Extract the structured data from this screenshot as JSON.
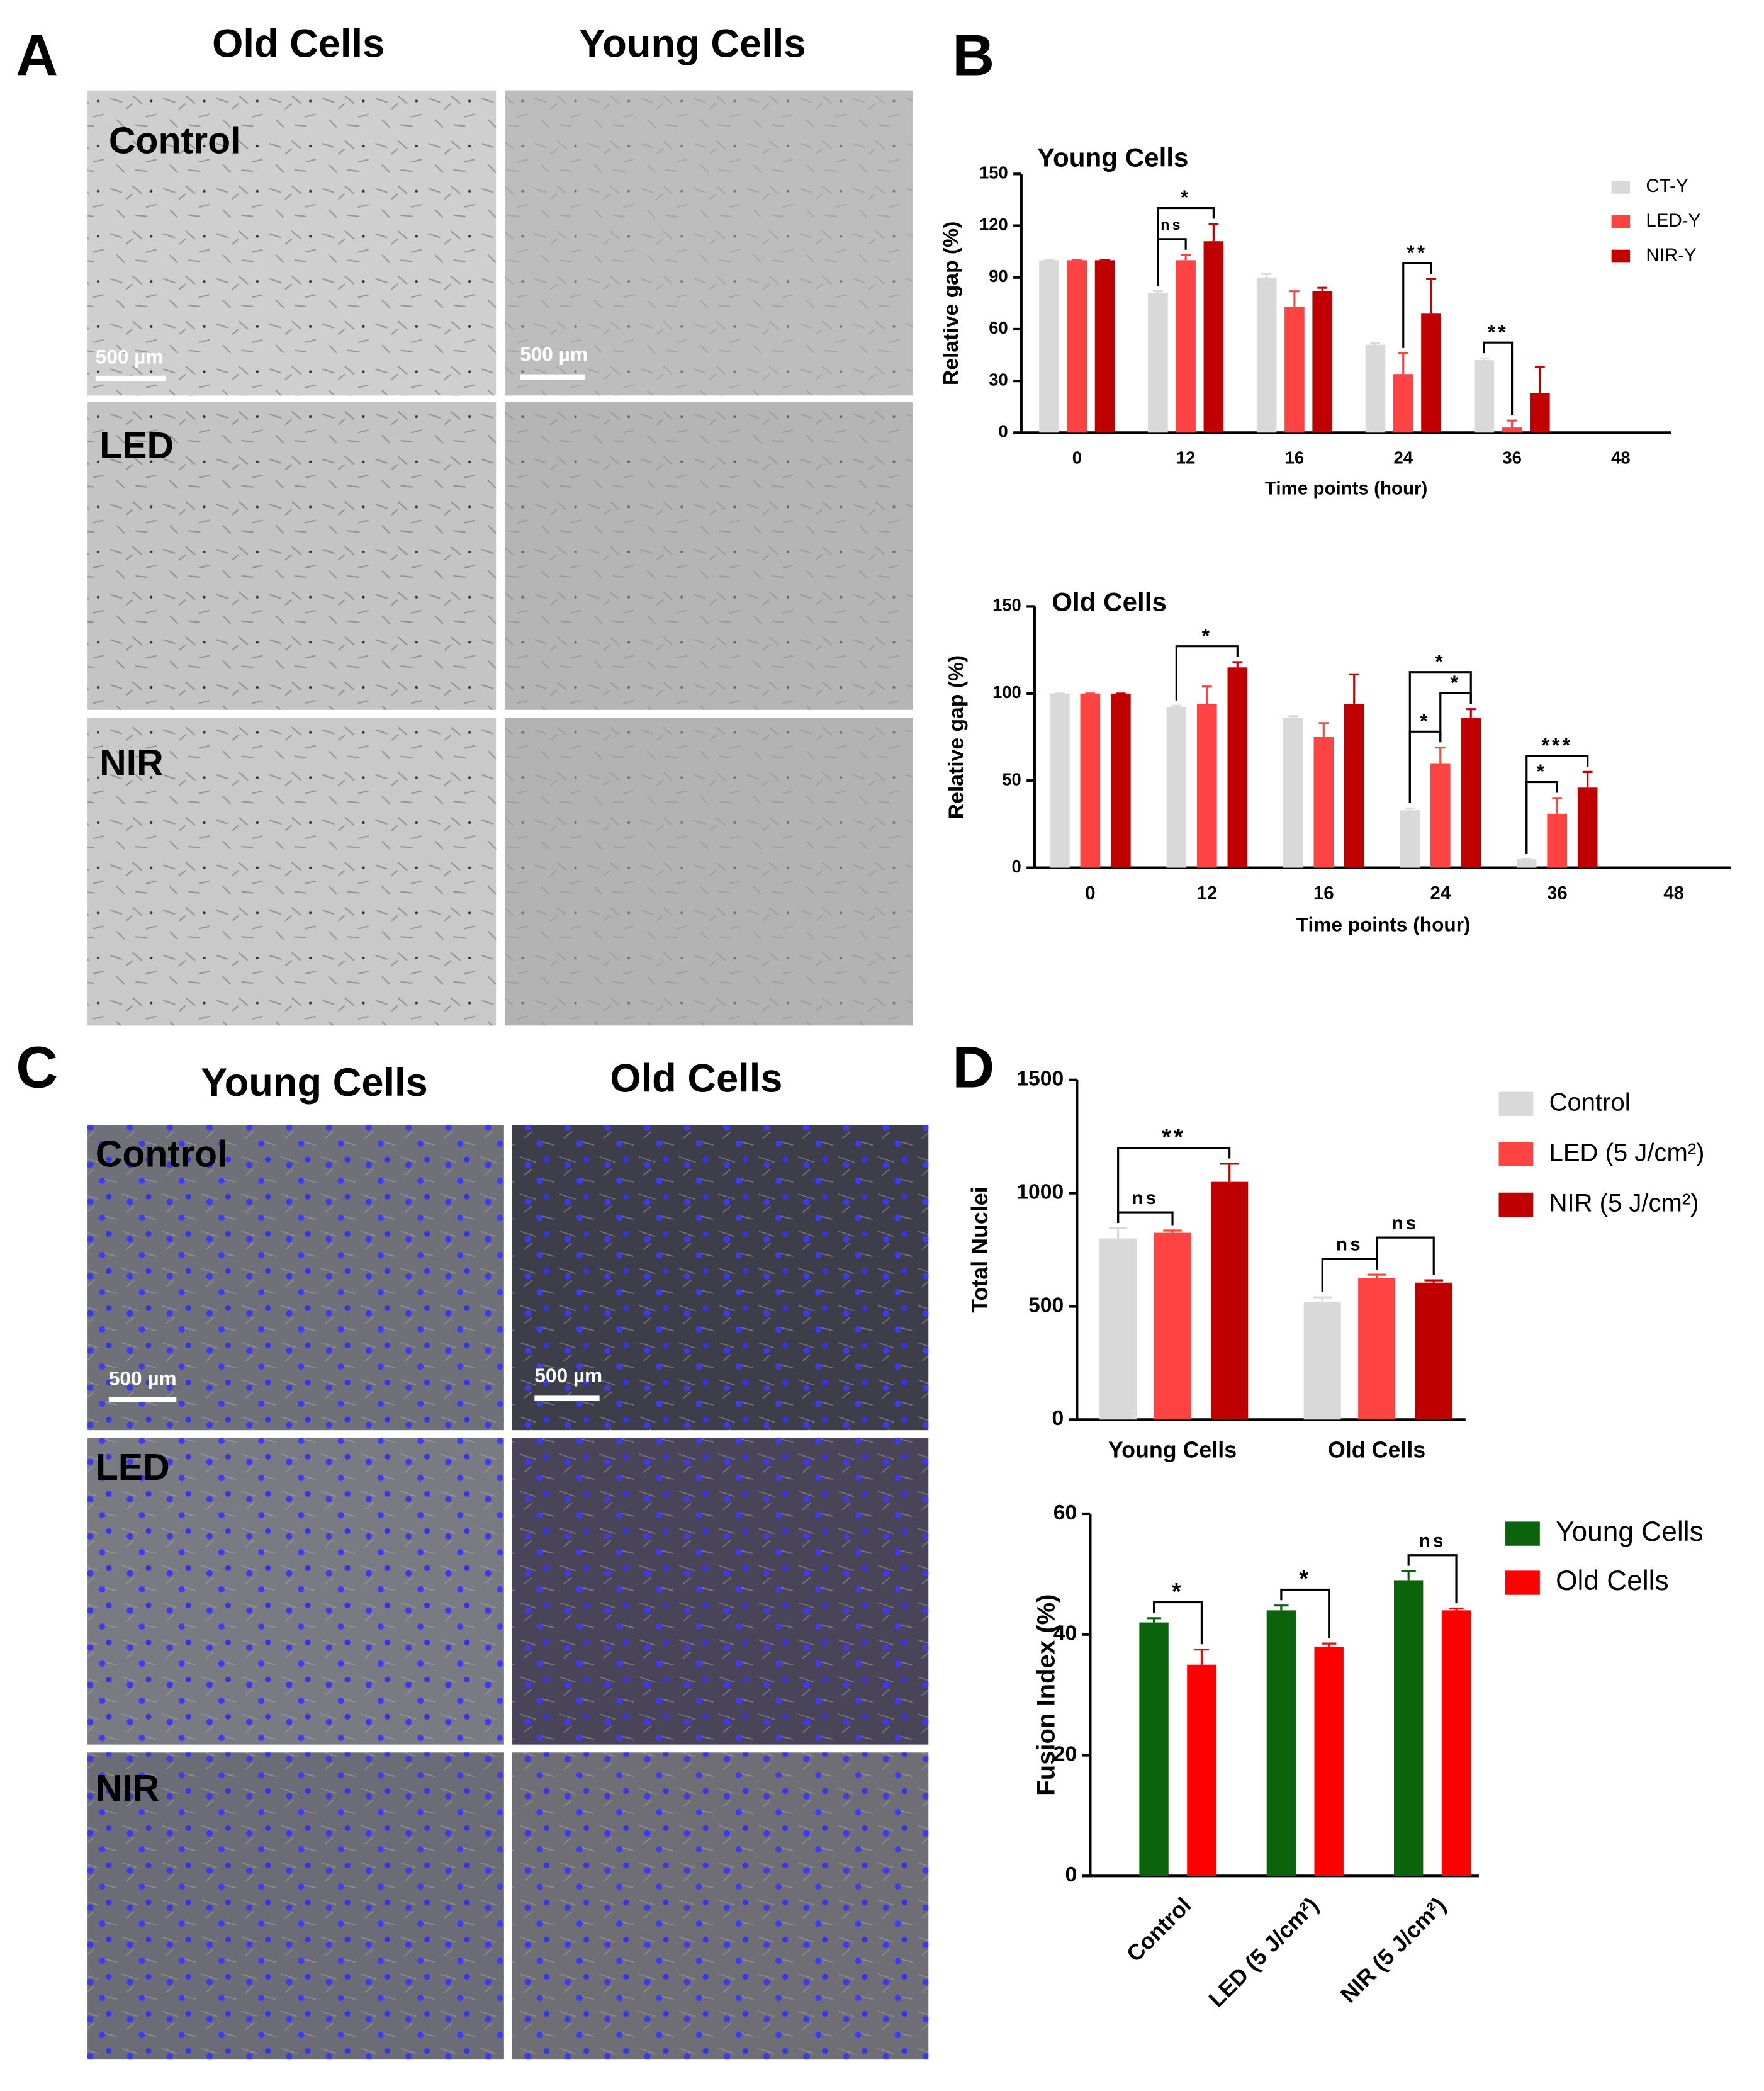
{
  "panels": {
    "A": {
      "label": "A",
      "columns": [
        "Old Cells",
        "Young Cells"
      ],
      "rows": [
        "Control",
        "LED",
        "NIR"
      ],
      "scale_bar": "500 µm"
    },
    "B": {
      "label": "B"
    },
    "C": {
      "label": "C",
      "columns": [
        "Young Cells",
        "Old Cells"
      ],
      "rows": [
        "Control",
        "LED",
        "NIR"
      ],
      "scale_bar": "500 µm"
    },
    "D": {
      "label": "D"
    }
  },
  "chart_data": [
    {
      "type": "bar",
      "title": "Young Cells",
      "x_label": "Time points (hour)",
      "y_label": "Relative gap (%)",
      "categories": [
        "0",
        "12",
        "16",
        "24",
        "36",
        "48"
      ],
      "series": [
        {
          "name": "CT-Y",
          "color": "#d9d9d9",
          "values": [
            100,
            81,
            90,
            51,
            42,
            null
          ],
          "errors": [
            0,
            1,
            2,
            1,
            1,
            null
          ]
        },
        {
          "name": "LED-Y",
          "color": "#ff4343",
          "values": [
            100,
            100,
            73,
            34,
            3,
            null
          ],
          "errors": [
            0,
            3,
            9,
            12,
            4,
            null
          ]
        },
        {
          "name": "NIR-Y",
          "color": "#c00000",
          "values": [
            100,
            111,
            82,
            69,
            23,
            null
          ],
          "errors": [
            0,
            10,
            2,
            20,
            15,
            null
          ]
        }
      ],
      "ylim": [
        0,
        150
      ],
      "yticks": [
        0,
        30,
        60,
        90,
        120,
        150
      ],
      "legend": "upper right",
      "significance": [
        {
          "category": "12",
          "pair": [
            0,
            1
          ],
          "label": "ns"
        },
        {
          "category": "12",
          "pair": [
            0,
            2
          ],
          "label": "*"
        },
        {
          "category": "24",
          "pair": [
            1,
            2
          ],
          "label": "**"
        },
        {
          "category": "36",
          "pair": [
            0,
            1
          ],
          "label": "**"
        }
      ]
    },
    {
      "type": "bar",
      "title": "Old Cells",
      "x_label": "Time points (hour)",
      "y_label": "Relative gap (%)",
      "categories": [
        "0",
        "12",
        "16",
        "24",
        "36",
        "48"
      ],
      "series": [
        {
          "color": "#d9d9d9",
          "values": [
            100,
            92,
            86,
            33,
            5,
            null
          ],
          "errors": [
            0,
            1,
            1,
            1,
            0,
            null
          ]
        },
        {
          "color": "#ff4343",
          "values": [
            100,
            94,
            75,
            60,
            31,
            null
          ],
          "errors": [
            0,
            10,
            8,
            9,
            9,
            null
          ]
        },
        {
          "color": "#c00000",
          "values": [
            100,
            115,
            94,
            86,
            46,
            null
          ],
          "errors": [
            0,
            3,
            17,
            5,
            9,
            null
          ]
        }
      ],
      "ylim": [
        0,
        150
      ],
      "yticks": [
        0,
        50,
        100,
        150
      ],
      "significance": [
        {
          "category": "12",
          "pair": [
            0,
            2
          ],
          "label": "*"
        },
        {
          "category": "24",
          "pair": [
            0,
            1
          ],
          "label": "*"
        },
        {
          "category": "24",
          "pair": [
            1,
            2
          ],
          "label": "*"
        },
        {
          "category": "24",
          "pair": [
            0,
            2
          ],
          "label": "*"
        },
        {
          "category": "36",
          "pair": [
            0,
            1
          ],
          "label": "*"
        },
        {
          "category": "36",
          "pair": [
            0,
            2
          ],
          "label": "***"
        }
      ]
    },
    {
      "type": "bar",
      "y_label": "Total Nuclei",
      "categories": [
        "Young Cells",
        "Old Cells"
      ],
      "series": [
        {
          "name": "Control",
          "color": "#d9d9d9",
          "values": [
            800,
            520
          ],
          "errors": [
            45,
            20
          ]
        },
        {
          "name": "LED (5 J/cm²)",
          "color": "#ff4343",
          "values": [
            825,
            625
          ],
          "errors": [
            10,
            15
          ]
        },
        {
          "name": "NIR (5 J/cm²)",
          "color": "#c00000",
          "values": [
            1050,
            605
          ],
          "errors": [
            80,
            10
          ]
        }
      ],
      "ylim": [
        0,
        1500
      ],
      "yticks": [
        0,
        500,
        1000,
        1500
      ],
      "legend": "upper right",
      "significance": [
        {
          "category": "Young Cells",
          "pair": [
            0,
            1
          ],
          "label": "ns"
        },
        {
          "category": "Young Cells",
          "pair": [
            0,
            2
          ],
          "label": "**"
        },
        {
          "category": "Old Cells",
          "pair": [
            0,
            1
          ],
          "label": "ns"
        },
        {
          "category": "Old Cells",
          "pair": [
            1,
            2
          ],
          "label": "ns"
        }
      ]
    },
    {
      "type": "bar",
      "y_label": "Fusion Index (%)",
      "categories": [
        "Control",
        "LED (5 J/cm²)",
        "NIR (5 J/cm²)"
      ],
      "series": [
        {
          "name": "Young Cells",
          "color": "#0b640b",
          "values": [
            42,
            44,
            49
          ],
          "errors": [
            0.7,
            0.8,
            1.5
          ]
        },
        {
          "name": "Old Cells",
          "color": "#ff0000",
          "values": [
            35,
            38,
            44
          ],
          "errors": [
            2.5,
            0.5,
            0.3
          ]
        }
      ],
      "ylim": [
        0,
        60
      ],
      "yticks": [
        0,
        20,
        40,
        60
      ],
      "legend": "upper right",
      "significance": [
        {
          "category": "Control",
          "pair": [
            0,
            1
          ],
          "label": "*"
        },
        {
          "category": "LED (5 J/cm²)",
          "pair": [
            0,
            1
          ],
          "label": "*"
        },
        {
          "category": "NIR (5 J/cm²)",
          "pair": [
            0,
            1
          ],
          "label": "ns"
        }
      ]
    }
  ]
}
